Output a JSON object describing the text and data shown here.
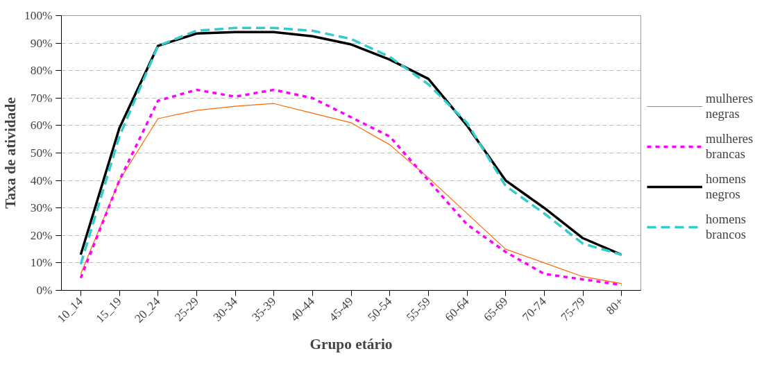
{
  "chart_data": {
    "type": "line",
    "xlabel": "Grupo etário",
    "ylabel": "Taxa de atividade",
    "categories": [
      "10_14",
      "15_19",
      "20_24",
      "25-29",
      "30-34",
      "35-39",
      "40-44",
      "45-49",
      "50-54",
      "55-59",
      "60-64",
      "65-69",
      "70-74",
      "75-79",
      "80+"
    ],
    "series": [
      {
        "name": "mulheres negras",
        "color": "#ff6600",
        "line_style": "solid",
        "values": [
          6,
          40,
          62.5,
          65.5,
          67,
          68,
          64.5,
          61,
          53,
          41,
          28,
          15,
          10,
          5,
          2.5
        ]
      },
      {
        "name": "mulheres brancas",
        "color": "#ff00ff",
        "line_style": "dotted",
        "values": [
          4.5,
          40,
          69,
          73,
          70.5,
          73,
          70,
          63,
          56,
          40,
          24,
          14,
          6,
          4,
          2
        ]
      },
      {
        "name": "homens negros",
        "color": "#000000",
        "line_style": "solid",
        "values": [
          13,
          59,
          89,
          93.5,
          94,
          94,
          92.5,
          89.5,
          84,
          77,
          60,
          40,
          30,
          19,
          13
        ]
      },
      {
        "name": "homens brancos",
        "color": "#33cccc",
        "line_style": "dashed",
        "values": [
          9.5,
          56,
          89,
          94.5,
          95.5,
          95.5,
          94.5,
          91.5,
          85,
          75,
          61,
          38,
          28,
          17,
          13
        ]
      }
    ],
    "ylim": [
      0,
      100
    ],
    "yticks": [
      {
        "value": 0,
        "label": "0%"
      },
      {
        "value": 10,
        "label": "10%"
      },
      {
        "value": 20,
        "label": "20%"
      },
      {
        "value": 30,
        "label": "30%"
      },
      {
        "value": 40,
        "label": "40%"
      },
      {
        "value": 50,
        "label": "50%"
      },
      {
        "value": 60,
        "label": "60%"
      },
      {
        "value": 70,
        "label": "70%"
      },
      {
        "value": 80,
        "label": "80%"
      },
      {
        "value": 90,
        "label": "90%"
      },
      {
        "value": 100,
        "label": "100%"
      }
    ],
    "grid": "y",
    "legend": "right",
    "marker": "none"
  }
}
